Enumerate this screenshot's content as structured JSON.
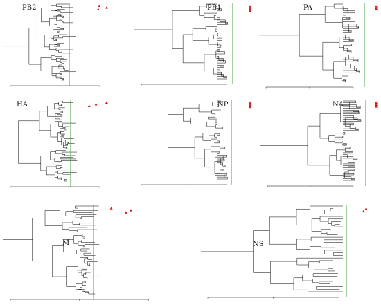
{
  "figure": {
    "colors": {
      "branch": "#000000",
      "taxa_label": "#9a9a9a",
      "timeline": "#2a9d2a",
      "study_strain_marker": "#e11818"
    },
    "marker_icon": "red-triangle",
    "panels": [
      {
        "id": "pb2",
        "title": "PB2",
        "markers": 3,
        "tips": 46,
        "time_axis_ticks": [
          "",
          "",
          ""
        ]
      },
      {
        "id": "pb1",
        "title": "PB1",
        "markers": 3,
        "tips": 34,
        "time_axis_ticks": [
          "",
          "",
          ""
        ]
      },
      {
        "id": "pa",
        "title": "PA",
        "markers": 2,
        "tips": 36,
        "time_axis_ticks": [
          "",
          "",
          ""
        ]
      },
      {
        "id": "ha",
        "title": "HA",
        "markers": 3,
        "tips": 48,
        "time_axis_ticks": [
          "",
          "",
          ""
        ]
      },
      {
        "id": "np",
        "title": "NP",
        "markers": 3,
        "tips": 40,
        "time_axis_ticks": [
          "",
          "",
          ""
        ]
      },
      {
        "id": "na",
        "title": "NA",
        "markers": 3,
        "tips": 44,
        "time_axis_ticks": [
          "",
          "",
          ""
        ]
      },
      {
        "id": "m",
        "title": "M",
        "markers": 3,
        "tips": 42,
        "time_axis_ticks": [
          "",
          "",
          ""
        ]
      },
      {
        "id": "ns",
        "title": "NS",
        "markers": 2,
        "tips": 34,
        "time_axis_ticks": [
          "",
          "",
          ""
        ]
      }
    ]
  }
}
